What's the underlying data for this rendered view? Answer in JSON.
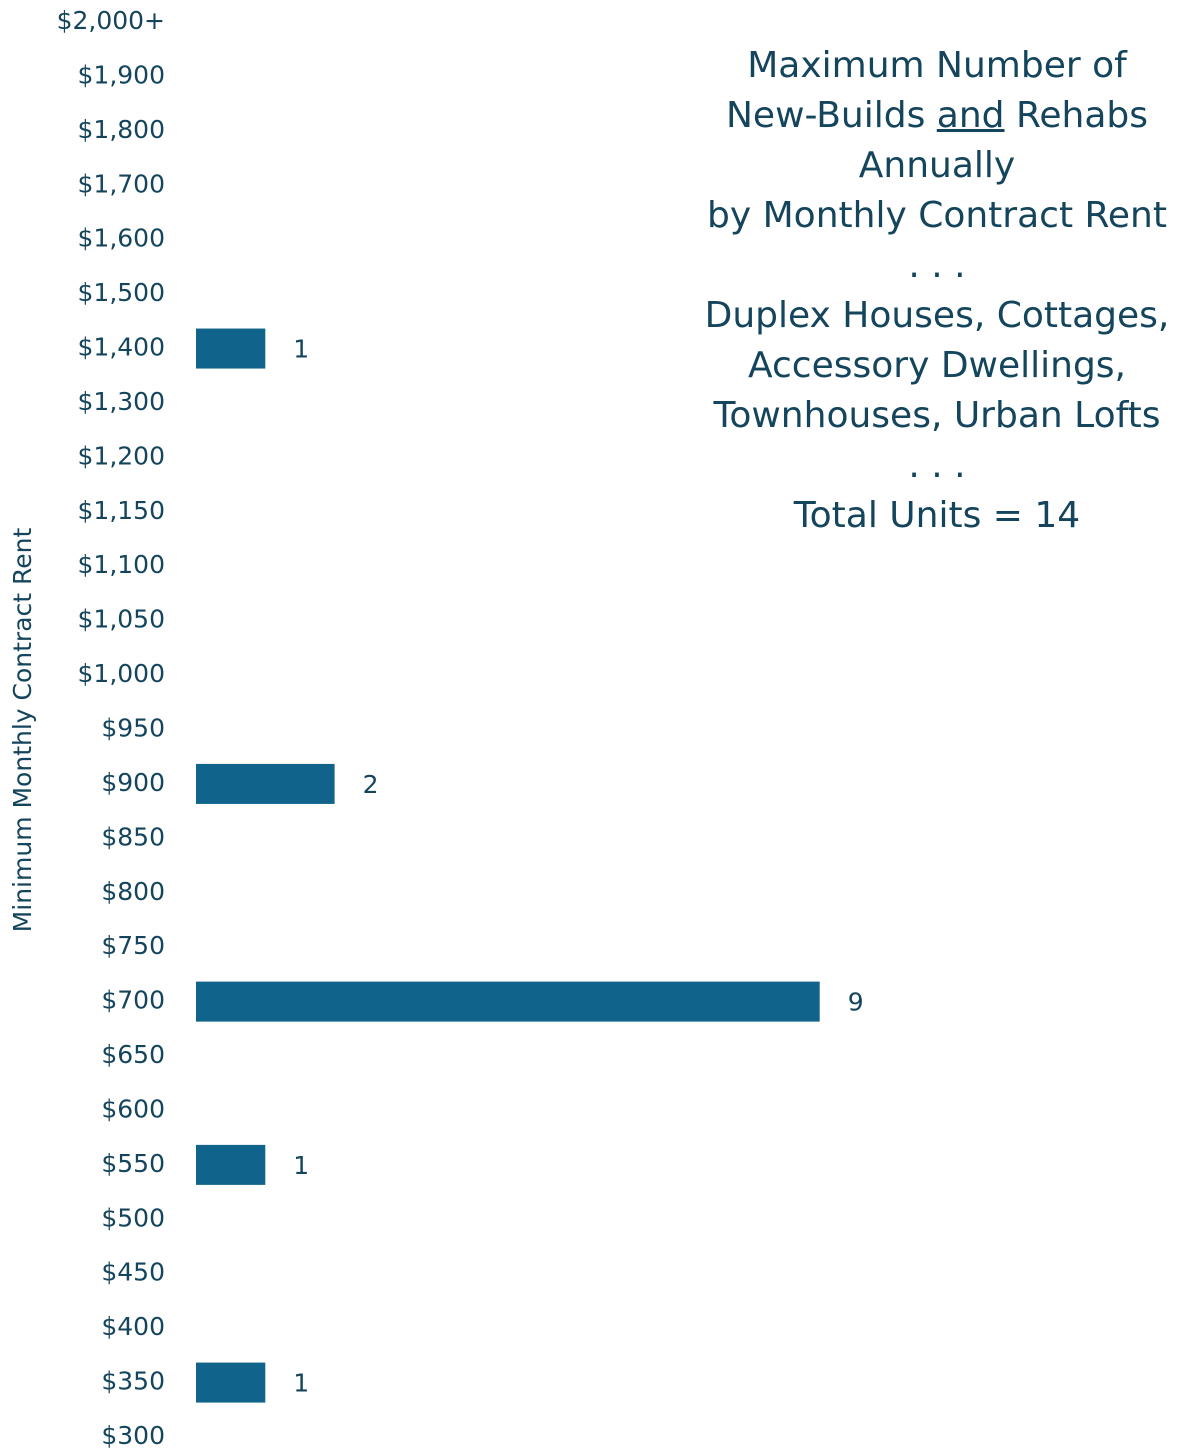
{
  "chart_data": {
    "type": "hbar",
    "title": [
      "Maximum Number of",
      [
        "New-Builds ",
        "and",
        " Rehabs"
      ],
      "Annually",
      "by Monthly Contract Rent",
      ". . .",
      "Duplex Houses, Cottages,",
      "Accessory Dwellings,",
      "Townhouses, Urban Lofts",
      ". . .",
      "Total Units = 14"
    ],
    "y_axis_label": "Minimum Monthly Contract Rent",
    "categories": [
      "$2,000+",
      "$1,900",
      "$1,800",
      "$1,700",
      "$1,600",
      "$1,500",
      "$1,400",
      "$1,300",
      "$1,200",
      "$1,150",
      "$1,100",
      "$1,050",
      "$1,000",
      "$950",
      "$900",
      "$850",
      "$800",
      "$750",
      "$700",
      "$650",
      "$600",
      "$550",
      "$500",
      "$450",
      "$400",
      "$350",
      "$300"
    ],
    "values": [
      null,
      null,
      null,
      null,
      null,
      null,
      1,
      null,
      null,
      null,
      null,
      null,
      null,
      null,
      2,
      null,
      null,
      null,
      9,
      null,
      null,
      1,
      null,
      null,
      null,
      1,
      null
    ],
    "color": "#10638a"
  }
}
